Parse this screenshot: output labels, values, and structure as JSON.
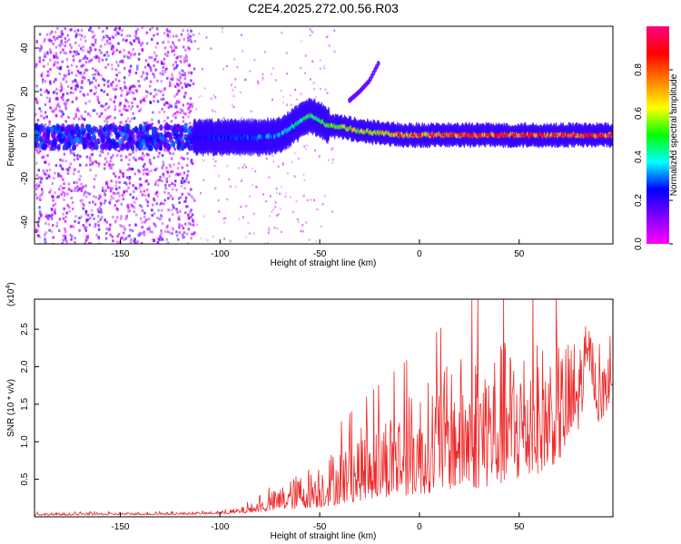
{
  "figure": {
    "title": "C2E4.2025.272.00.56.R03"
  },
  "chart_data": [
    {
      "type": "heatmap",
      "xlabel": "Height of straight line (km)",
      "ylabel": "Frequency (Hz)",
      "xlim": [
        -193,
        97
      ],
      "ylim": [
        -50,
        50
      ],
      "xticks": [
        -150,
        -100,
        -50,
        0,
        50
      ],
      "yticks": [
        -40,
        -20,
        0,
        20,
        40
      ],
      "grid": false,
      "colorbar": {
        "label": "Normalized spectral amplitude",
        "range": [
          0.0,
          1.0
        ],
        "ticks": [
          "0.0",
          "0.2",
          "0.4",
          "0.6",
          "0.8"
        ],
        "colors": [
          "#ff00ff",
          "#8000ff",
          "#0000ff",
          "#00ffff",
          "#00ff00",
          "#ffff00",
          "#ff8000",
          "#ff0000",
          "#ff0080"
        ]
      },
      "ridge": {
        "x": [
          -113,
          -100,
          -90,
          -80,
          -70,
          -60,
          -55,
          -50,
          -45,
          -40,
          -30,
          -20,
          -10,
          0,
          20,
          40,
          60,
          80,
          97
        ],
        "y": [
          -1,
          -1,
          -1,
          -1,
          0,
          6,
          9,
          7,
          4,
          4,
          2,
          1,
          0,
          0,
          0,
          0,
          0,
          0,
          0
        ],
        "amp": [
          0.25,
          0.3,
          0.3,
          0.35,
          0.4,
          0.5,
          0.55,
          0.5,
          0.6,
          0.65,
          0.7,
          0.7,
          0.75,
          0.8,
          0.85,
          0.85,
          0.9,
          0.9,
          0.9
        ]
      },
      "branch": {
        "x": [
          -35,
          -30,
          -25,
          -20
        ],
        "y": [
          16,
          20,
          25,
          34
        ]
      }
    },
    {
      "type": "line",
      "xlabel": "Height of straight line (km)",
      "ylabel": "SNR (10 * v/v)",
      "multiplier": "(x10",
      "multiplier_exp": "4",
      "multiplier_close": ")",
      "xlim": [
        -193,
        97
      ],
      "ylim": [
        0,
        2.9
      ],
      "xticks": [
        -150,
        -100,
        -50,
        0,
        50
      ],
      "yticks": [
        "0.5",
        "1.0",
        "1.5",
        "2.0",
        "2.5"
      ],
      "color": "#ee2a2a",
      "series": [
        {
          "x": [
            -193,
            -120,
            -100,
            -90,
            -80,
            -70,
            -60,
            -50,
            -40,
            -30,
            -20,
            -10,
            0,
            10,
            20,
            30,
            40,
            50,
            60,
            70,
            80,
            85,
            90,
            97
          ],
          "mean": [
            0.03,
            0.04,
            0.05,
            0.07,
            0.12,
            0.2,
            0.28,
            0.35,
            0.45,
            0.55,
            0.65,
            0.72,
            0.8,
            0.9,
            1.0,
            1.05,
            1.1,
            1.15,
            1.2,
            1.3,
            1.6,
            2.2,
            1.5,
            1.8
          ],
          "amp": [
            0.02,
            0.02,
            0.02,
            0.05,
            0.1,
            0.2,
            0.3,
            0.4,
            0.5,
            0.6,
            0.7,
            0.8,
            0.9,
            1.0,
            1.1,
            1.2,
            1.2,
            1.2,
            1.1,
            1.0,
            0.8,
            0.4,
            0.5,
            0.4
          ]
        }
      ]
    }
  ]
}
